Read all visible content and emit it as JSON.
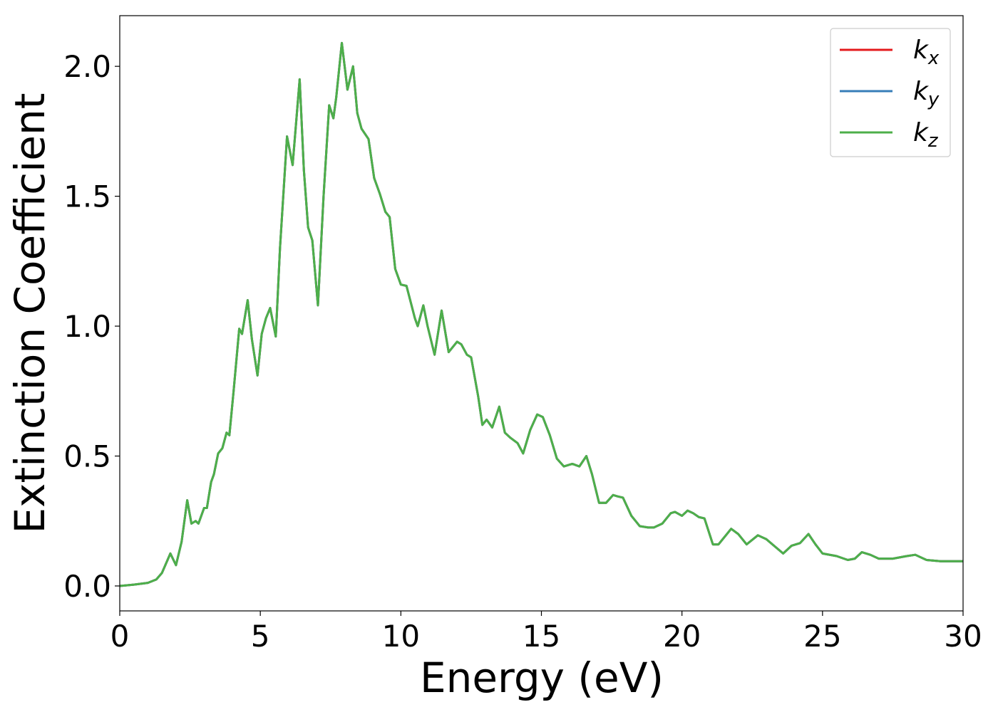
{
  "chart_data": {
    "type": "line",
    "xlabel": "Energy (eV)",
    "ylabel": "Extinction Coefficient",
    "x": [
      0,
      0.5,
      1,
      1.3,
      1.5,
      1.8,
      2.0,
      2.2,
      2.4,
      2.55,
      2.7,
      2.8,
      3.0,
      3.1,
      3.25,
      3.35,
      3.5,
      3.65,
      3.8,
      3.9,
      4.05,
      4.25,
      4.35,
      4.55,
      4.7,
      4.9,
      5.05,
      5.2,
      5.35,
      5.55,
      5.7,
      5.95,
      6.15,
      6.4,
      6.55,
      6.7,
      6.85,
      7.05,
      7.25,
      7.45,
      7.6,
      7.7,
      7.9,
      8.1,
      8.3,
      8.45,
      8.6,
      8.85,
      9.05,
      9.25,
      9.45,
      9.6,
      9.8,
      10.0,
      10.2,
      10.5,
      10.6,
      10.8,
      10.95,
      11.2,
      11.45,
      11.7,
      12.0,
      12.15,
      12.35,
      12.5,
      12.75,
      12.9,
      13.05,
      13.25,
      13.5,
      13.7,
      13.9,
      14.15,
      14.35,
      14.6,
      14.85,
      15.05,
      15.3,
      15.55,
      15.8,
      16.1,
      16.35,
      16.6,
      16.8,
      17.05,
      17.3,
      17.55,
      17.7,
      17.9,
      18.2,
      18.5,
      18.8,
      19.0,
      19.3,
      19.6,
      19.75,
      20.0,
      20.2,
      20.4,
      20.6,
      20.8,
      21.1,
      21.3,
      21.75,
      22.0,
      22.3,
      22.7,
      23.0,
      23.6,
      23.9,
      24.2,
      24.5,
      24.75,
      25,
      25.5,
      25.9,
      26.15,
      26.4,
      26.7,
      27,
      27.5,
      28,
      28.3,
      28.7,
      29.2,
      30
    ],
    "series": [
      {
        "name": "kx",
        "color": "#e41a1c",
        "values": [
          0,
          0.005,
          0.012,
          0.025,
          0.05,
          0.125,
          0.08,
          0.17,
          0.33,
          0.24,
          0.25,
          0.24,
          0.3,
          0.3,
          0.4,
          0.43,
          0.51,
          0.53,
          0.59,
          0.58,
          0.75,
          0.99,
          0.97,
          1.1,
          0.95,
          0.81,
          0.97,
          1.03,
          1.07,
          0.96,
          1.3,
          1.73,
          1.62,
          1.95,
          1.6,
          1.38,
          1.33,
          1.08,
          1.5,
          1.85,
          1.8,
          1.88,
          2.09,
          1.91,
          2.0,
          1.82,
          1.76,
          1.72,
          1.57,
          1.51,
          1.44,
          1.42,
          1.22,
          1.16,
          1.155,
          1.03,
          1.0,
          1.08,
          1.0,
          0.89,
          1.06,
          0.9,
          0.94,
          0.93,
          0.89,
          0.88,
          0.73,
          0.62,
          0.64,
          0.61,
          0.69,
          0.59,
          0.57,
          0.55,
          0.51,
          0.6,
          0.66,
          0.65,
          0.58,
          0.49,
          0.46,
          0.47,
          0.46,
          0.5,
          0.43,
          0.32,
          0.32,
          0.35,
          0.345,
          0.34,
          0.27,
          0.23,
          0.225,
          0.225,
          0.24,
          0.28,
          0.285,
          0.27,
          0.29,
          0.28,
          0.265,
          0.26,
          0.16,
          0.16,
          0.22,
          0.2,
          0.16,
          0.195,
          0.18,
          0.125,
          0.155,
          0.165,
          0.2,
          0.16,
          0.125,
          0.115,
          0.1,
          0.105,
          0.13,
          0.12,
          0.105,
          0.105,
          0.115,
          0.12,
          0.1,
          0.095,
          0.095
        ]
      },
      {
        "name": "ky",
        "color": "#377eb8",
        "values": [
          0,
          0.005,
          0.012,
          0.025,
          0.05,
          0.125,
          0.08,
          0.17,
          0.33,
          0.24,
          0.25,
          0.24,
          0.3,
          0.3,
          0.4,
          0.43,
          0.51,
          0.53,
          0.59,
          0.58,
          0.75,
          0.99,
          0.97,
          1.1,
          0.95,
          0.81,
          0.97,
          1.03,
          1.07,
          0.96,
          1.3,
          1.73,
          1.62,
          1.95,
          1.6,
          1.38,
          1.33,
          1.08,
          1.5,
          1.85,
          1.8,
          1.88,
          2.09,
          1.91,
          2.0,
          1.82,
          1.76,
          1.72,
          1.57,
          1.51,
          1.44,
          1.42,
          1.22,
          1.16,
          1.155,
          1.03,
          1.0,
          1.08,
          1.0,
          0.89,
          1.06,
          0.9,
          0.94,
          0.93,
          0.89,
          0.88,
          0.73,
          0.62,
          0.64,
          0.61,
          0.69,
          0.59,
          0.57,
          0.55,
          0.51,
          0.6,
          0.66,
          0.65,
          0.58,
          0.49,
          0.46,
          0.47,
          0.46,
          0.5,
          0.43,
          0.32,
          0.32,
          0.35,
          0.345,
          0.34,
          0.27,
          0.23,
          0.225,
          0.225,
          0.24,
          0.28,
          0.285,
          0.27,
          0.29,
          0.28,
          0.265,
          0.26,
          0.16,
          0.16,
          0.22,
          0.2,
          0.16,
          0.195,
          0.18,
          0.125,
          0.155,
          0.165,
          0.2,
          0.16,
          0.125,
          0.115,
          0.1,
          0.105,
          0.13,
          0.12,
          0.105,
          0.105,
          0.115,
          0.12,
          0.1,
          0.095,
          0.095
        ]
      },
      {
        "name": "kz",
        "color": "#4daf4a",
        "values": [
          0,
          0.005,
          0.012,
          0.025,
          0.05,
          0.125,
          0.08,
          0.17,
          0.33,
          0.24,
          0.25,
          0.24,
          0.3,
          0.3,
          0.4,
          0.43,
          0.51,
          0.53,
          0.59,
          0.58,
          0.75,
          0.99,
          0.97,
          1.1,
          0.95,
          0.81,
          0.97,
          1.03,
          1.07,
          0.96,
          1.3,
          1.73,
          1.62,
          1.95,
          1.6,
          1.38,
          1.33,
          1.08,
          1.5,
          1.85,
          1.8,
          1.88,
          2.09,
          1.91,
          2.0,
          1.82,
          1.76,
          1.72,
          1.57,
          1.51,
          1.44,
          1.42,
          1.22,
          1.16,
          1.155,
          1.03,
          1.0,
          1.08,
          1.0,
          0.89,
          1.06,
          0.9,
          0.94,
          0.93,
          0.89,
          0.88,
          0.73,
          0.62,
          0.64,
          0.61,
          0.69,
          0.59,
          0.57,
          0.55,
          0.51,
          0.6,
          0.66,
          0.65,
          0.58,
          0.49,
          0.46,
          0.47,
          0.46,
          0.5,
          0.43,
          0.32,
          0.32,
          0.35,
          0.345,
          0.34,
          0.27,
          0.23,
          0.225,
          0.225,
          0.24,
          0.28,
          0.285,
          0.27,
          0.29,
          0.28,
          0.265,
          0.26,
          0.16,
          0.16,
          0.22,
          0.2,
          0.16,
          0.195,
          0.18,
          0.125,
          0.155,
          0.165,
          0.2,
          0.16,
          0.125,
          0.115,
          0.1,
          0.105,
          0.13,
          0.12,
          0.105,
          0.105,
          0.115,
          0.12,
          0.1,
          0.095,
          0.095
        ]
      }
    ],
    "xlim": [
      0,
      30
    ],
    "xticks": [
      0,
      5,
      10,
      15,
      20,
      25,
      30
    ],
    "ylim": [
      -0.096,
      2.195
    ],
    "yticks": [
      {
        "value": 0,
        "label": "0.0"
      },
      0.5,
      {
        "value": 1,
        "label": "1.0"
      },
      1.5,
      {
        "value": 2,
        "label": "2.0"
      }
    ],
    "grid": false,
    "legend": "upper right"
  }
}
